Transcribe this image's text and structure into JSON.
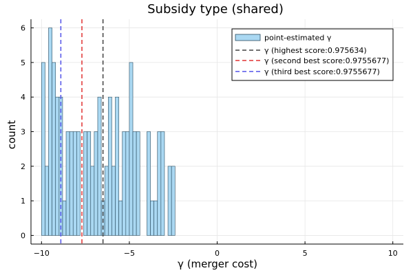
{
  "chart_data": {
    "type": "bar",
    "title": "Subsidy type (shared)",
    "xlabel": "γ (merger cost)",
    "ylabel": "count",
    "xlim": [
      -10.6,
      10.6
    ],
    "ylim": [
      -0.25,
      6.25
    ],
    "x_ticks": [
      -10,
      -5,
      0,
      5,
      10
    ],
    "x_tick_labels": [
      "−10",
      "−5",
      "0",
      "5",
      "10"
    ],
    "y_ticks": [
      0,
      1,
      2,
      3,
      4,
      5,
      6
    ],
    "y_tick_labels": [
      "0",
      "1",
      "2",
      "3",
      "4",
      "5",
      "6"
    ],
    "grid": true,
    "legend_position": "top-right",
    "histogram": {
      "name": "point-estimated γ",
      "bin_width": 0.2,
      "bin_edges_start": -10.0,
      "counts": [
        5,
        2,
        6,
        5,
        4,
        4,
        1,
        3,
        3,
        3,
        3,
        0,
        3,
        3,
        2,
        3,
        4,
        1,
        2,
        4,
        2,
        4,
        1,
        3,
        3,
        5,
        3,
        3,
        0,
        0,
        3,
        1,
        1,
        3,
        3,
        0,
        2,
        2,
        0,
        0,
        0,
        0,
        0,
        0,
        0,
        0,
        0,
        0,
        0,
        0,
        0,
        0,
        0,
        0,
        0,
        0,
        0,
        0,
        0,
        0,
        0,
        0,
        0,
        0,
        0,
        0,
        0,
        0,
        0,
        0,
        0,
        0,
        0,
        0,
        0,
        0,
        0,
        0,
        0,
        0,
        0,
        0,
        0,
        0,
        0,
        0,
        0,
        0,
        0,
        0,
        0,
        0,
        0,
        0,
        0,
        0,
        0,
        0,
        0,
        0,
        0,
        0,
        0,
        0,
        0,
        0,
        0,
        0,
        0,
        0,
        0,
        0,
        0,
        0,
        0,
        0,
        0,
        0,
        0,
        0,
        0,
        0,
        0,
        0,
        0,
        0,
        0,
        0,
        0,
        0,
        0,
        0,
        0,
        0,
        0,
        0,
        0,
        0,
        0,
        0,
        0,
        0,
        0,
        0,
        0,
        0,
        0,
        0,
        0,
        0,
        0,
        0,
        0,
        0,
        0,
        0,
        0,
        0,
        0,
        0,
        0,
        0,
        0,
        0,
        0,
        0,
        0,
        0,
        0,
        0,
        0,
        0,
        0,
        0,
        0,
        0,
        0,
        0,
        0,
        0,
        0,
        0,
        0,
        0,
        0,
        0,
        0,
        0,
        0,
        0,
        0,
        0,
        0,
        0,
        0,
        0,
        0,
        0,
        0,
        0,
        0,
        0,
        0,
        0,
        0,
        0,
        0,
        0,
        0,
        0,
        0,
        0,
        0,
        0,
        0,
        0
      ],
      "fill": "#aad8f2",
      "stroke": "#274a5e"
    },
    "vlines": [
      {
        "name": "γ (highest score:0.975634)",
        "x": -6.5,
        "color": "#404040"
      },
      {
        "name": "γ (second best score:0.9755677)",
        "x": -7.7,
        "color": "#e03030"
      },
      {
        "name": "γ (third best score:0.9755677)",
        "x": -8.9,
        "color": "#5050e8"
      }
    ]
  }
}
